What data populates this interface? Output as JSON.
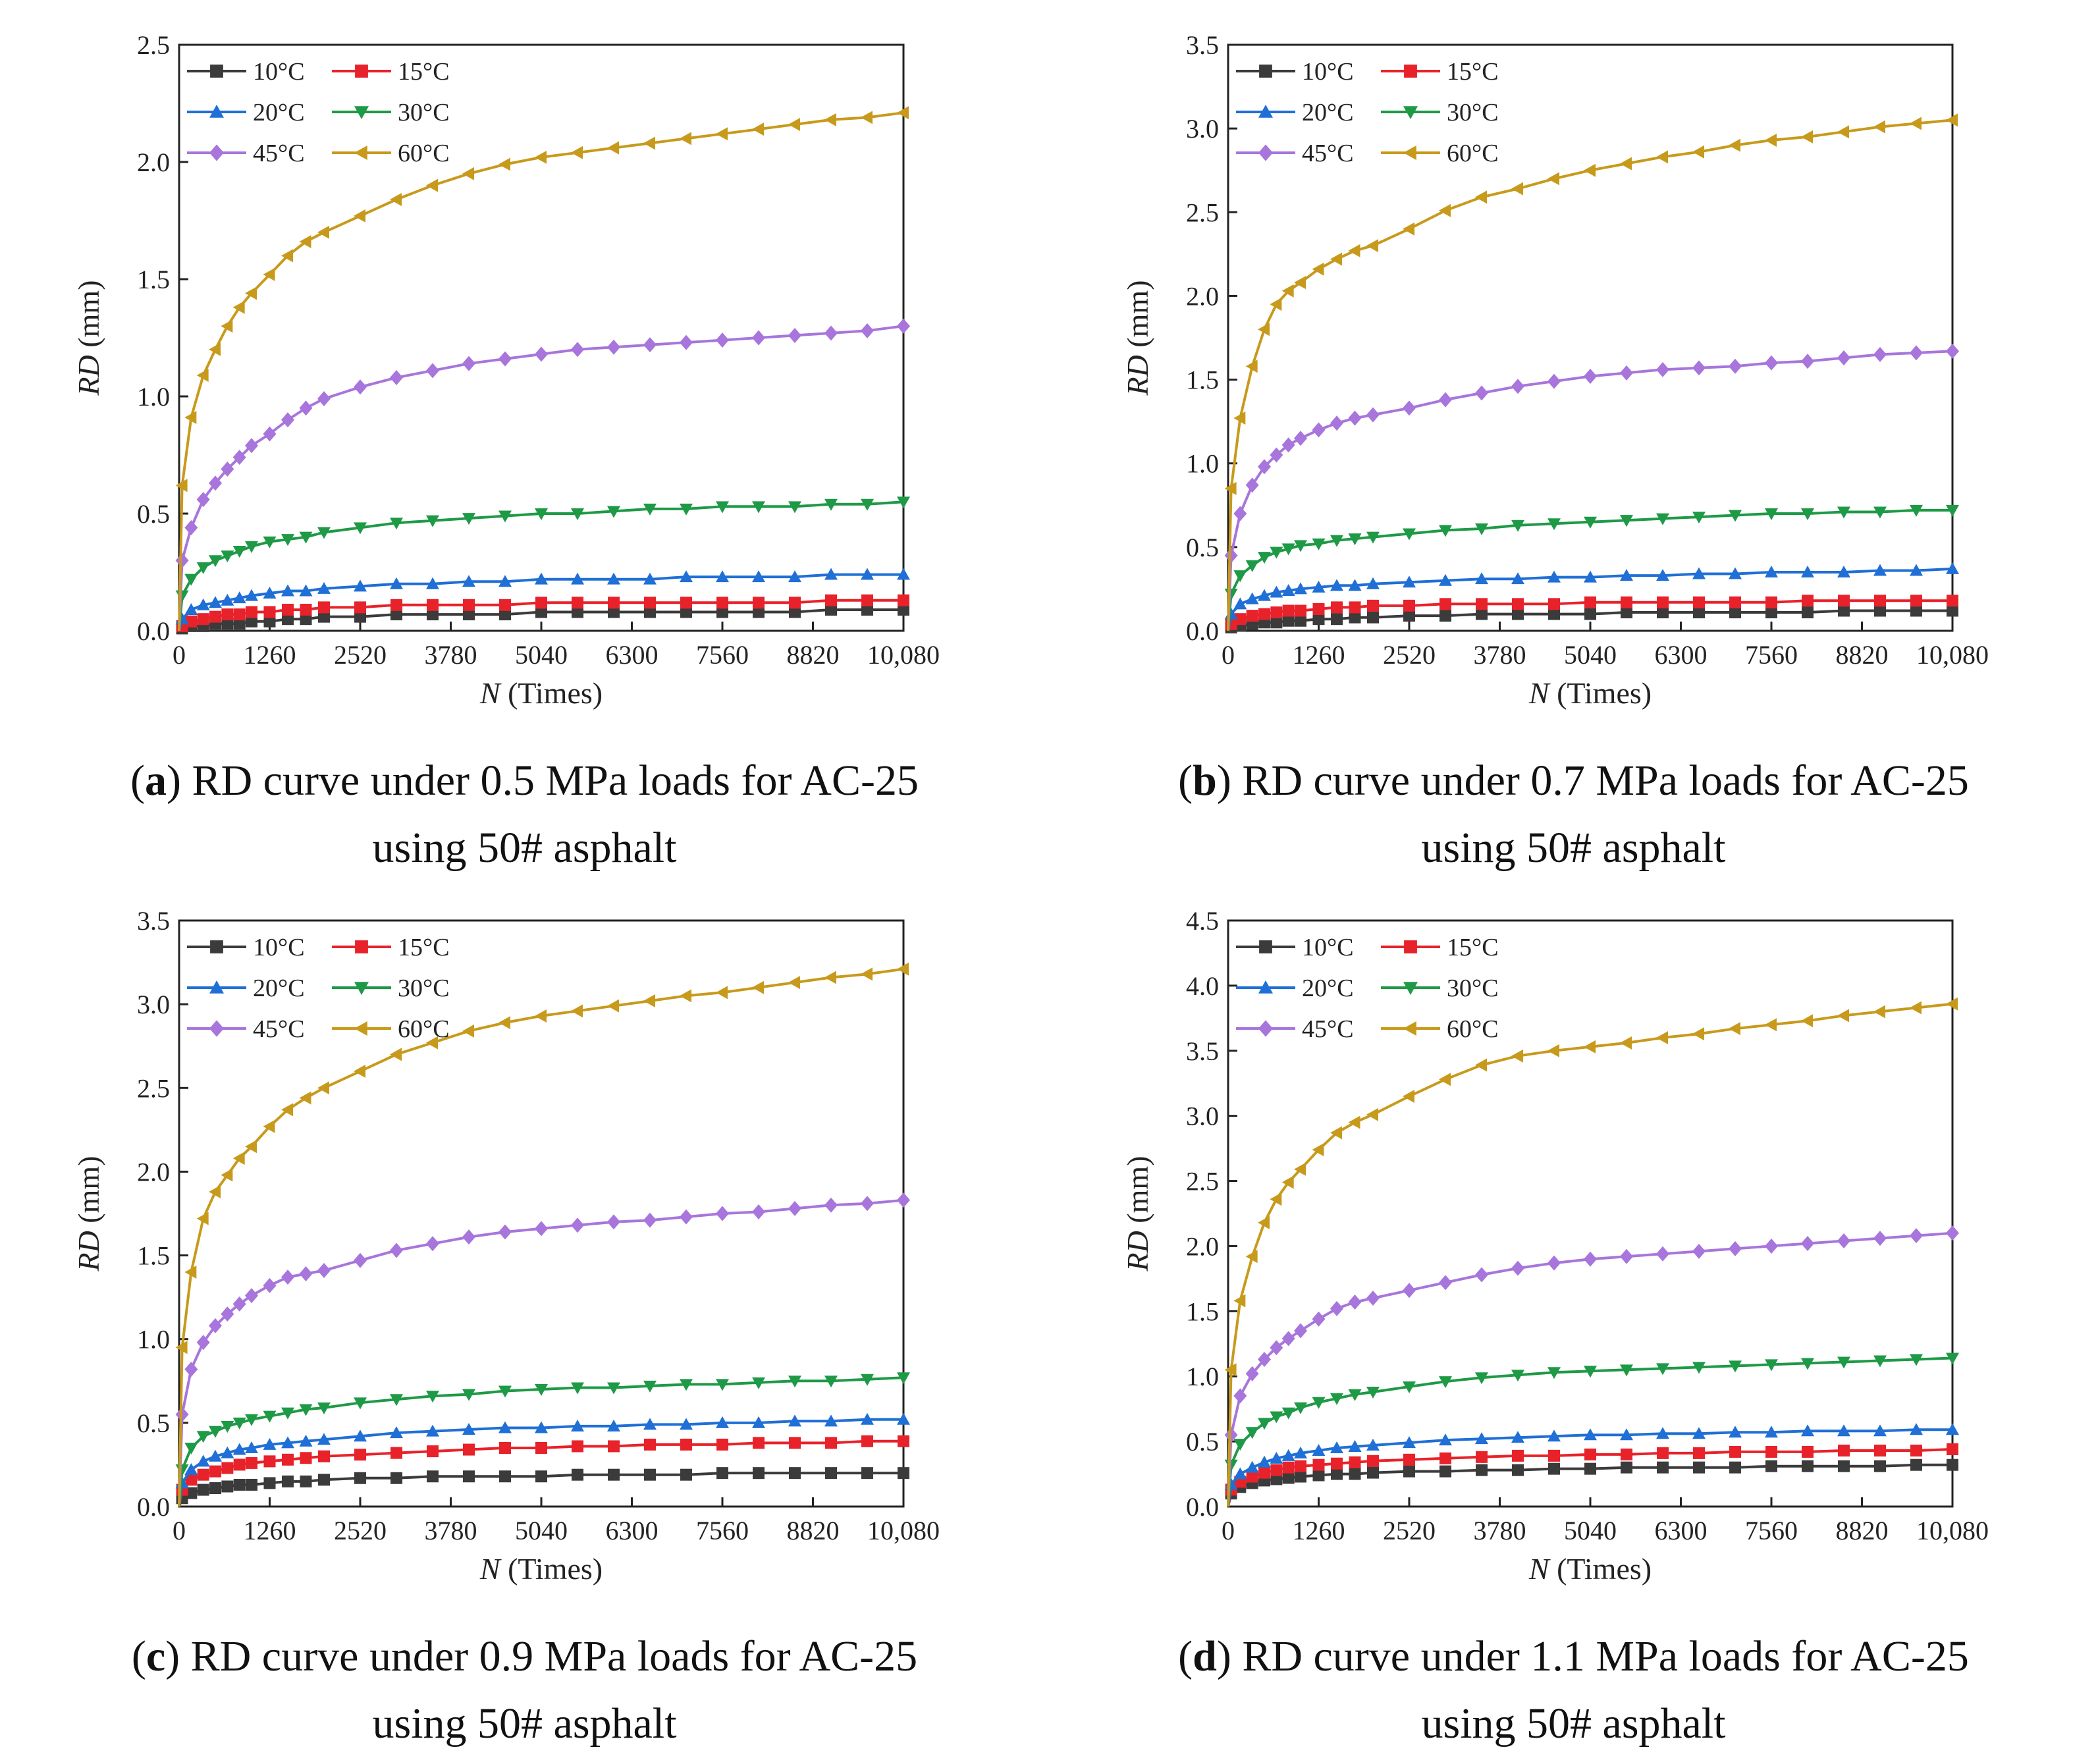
{
  "colors": {
    "10": "#3b3b3b",
    "15": "#e8222a",
    "20": "#1f6fd6",
    "30": "#1e9a46",
    "45": "#a875dc",
    "60": "#c89a1c"
  },
  "chart_data": [
    {
      "type": "line",
      "id": "a",
      "caption_letter": "a",
      "caption_line1": "RD curve under 0.5 MPa loads for AC-25",
      "caption_line2": "using 50# asphalt",
      "xlabel_italic": "N",
      "xlabel_rest": "(Times)",
      "ylabel_italic": "RD",
      "ylabel_rest": "(mm)",
      "xlim": [
        0,
        10080
      ],
      "ylim": [
        0,
        2.5
      ],
      "x_ticks": [
        "0",
        "1260",
        "2520",
        "3780",
        "5040",
        "6300",
        "7560",
        "8820",
        "10,080"
      ],
      "y_ticks": [
        "0.0",
        "0.5",
        "1.0",
        "1.5",
        "2.0",
        "2.5"
      ],
      "x": [
        0,
        42,
        168,
        336,
        504,
        672,
        840,
        1008,
        1260,
        1512,
        1764,
        2016,
        2520,
        3024,
        3528,
        4032,
        4536,
        5040,
        5544,
        6048,
        6552,
        7056,
        7560,
        8064,
        8568,
        9072,
        9576,
        10080
      ],
      "series": [
        {
          "name": "10°C",
          "marker": "square",
          "values": [
            0,
            0.01,
            0.02,
            0.02,
            0.03,
            0.03,
            0.03,
            0.04,
            0.04,
            0.05,
            0.05,
            0.06,
            0.06,
            0.07,
            0.07,
            0.07,
            0.07,
            0.08,
            0.08,
            0.08,
            0.08,
            0.08,
            0.08,
            0.08,
            0.08,
            0.09,
            0.09,
            0.09
          ]
        },
        {
          "name": "15°C",
          "marker": "square",
          "values": [
            0,
            0.02,
            0.04,
            0.05,
            0.06,
            0.07,
            0.07,
            0.08,
            0.08,
            0.09,
            0.09,
            0.1,
            0.1,
            0.11,
            0.11,
            0.11,
            0.11,
            0.12,
            0.12,
            0.12,
            0.12,
            0.12,
            0.12,
            0.12,
            0.12,
            0.13,
            0.13,
            0.13
          ]
        },
        {
          "name": "20°C",
          "marker": "triangle-up",
          "values": [
            0,
            0.05,
            0.09,
            0.11,
            0.12,
            0.13,
            0.14,
            0.15,
            0.16,
            0.17,
            0.17,
            0.18,
            0.19,
            0.2,
            0.2,
            0.21,
            0.21,
            0.22,
            0.22,
            0.22,
            0.22,
            0.23,
            0.23,
            0.23,
            0.23,
            0.24,
            0.24,
            0.24
          ]
        },
        {
          "name": "30°C",
          "marker": "triangle-down",
          "values": [
            0,
            0.15,
            0.22,
            0.27,
            0.3,
            0.32,
            0.34,
            0.36,
            0.38,
            0.39,
            0.4,
            0.42,
            0.44,
            0.46,
            0.47,
            0.48,
            0.49,
            0.5,
            0.5,
            0.51,
            0.52,
            0.52,
            0.53,
            0.53,
            0.53,
            0.54,
            0.54,
            0.55
          ]
        },
        {
          "name": "45°C",
          "marker": "diamond",
          "values": [
            0,
            0.3,
            0.44,
            0.56,
            0.63,
            0.69,
            0.74,
            0.79,
            0.84,
            0.9,
            0.95,
            0.99,
            1.04,
            1.08,
            1.11,
            1.14,
            1.16,
            1.18,
            1.2,
            1.21,
            1.22,
            1.23,
            1.24,
            1.25,
            1.26,
            1.27,
            1.28,
            1.3
          ]
        },
        {
          "name": "60°C",
          "marker": "triangle-left",
          "values": [
            0,
            0.62,
            0.91,
            1.09,
            1.2,
            1.3,
            1.38,
            1.44,
            1.52,
            1.6,
            1.66,
            1.7,
            1.77,
            1.84,
            1.9,
            1.95,
            1.99,
            2.02,
            2.04,
            2.06,
            2.08,
            2.1,
            2.12,
            2.14,
            2.16,
            2.18,
            2.19,
            2.21
          ]
        }
      ]
    },
    {
      "type": "line",
      "id": "b",
      "caption_letter": "b",
      "caption_line1": "RD curve under 0.7 MPa loads for AC-25",
      "caption_line2": "using 50# asphalt",
      "xlabel_italic": "N",
      "xlabel_rest": "(Times)",
      "ylabel_italic": "RD",
      "ylabel_rest": "(mm)",
      "xlim": [
        0,
        10080
      ],
      "ylim": [
        0,
        3.5
      ],
      "x_ticks": [
        "0",
        "1260",
        "2520",
        "3780",
        "5040",
        "6300",
        "7560",
        "8820",
        "10,080"
      ],
      "y_ticks": [
        "0.0",
        "0.5",
        "1.0",
        "1.5",
        "2.0",
        "2.5",
        "3.0",
        "3.5"
      ],
      "x": [
        0,
        42,
        168,
        336,
        504,
        672,
        840,
        1008,
        1260,
        1512,
        1764,
        2016,
        2520,
        3024,
        3528,
        4032,
        4536,
        5040,
        5544,
        6048,
        6552,
        7056,
        7560,
        8064,
        8568,
        9072,
        9576,
        10080
      ],
      "series": [
        {
          "name": "10°C",
          "marker": "square",
          "values": [
            0,
            0.02,
            0.03,
            0.04,
            0.05,
            0.05,
            0.06,
            0.06,
            0.07,
            0.07,
            0.08,
            0.08,
            0.09,
            0.09,
            0.1,
            0.1,
            0.1,
            0.1,
            0.11,
            0.11,
            0.11,
            0.11,
            0.11,
            0.11,
            0.12,
            0.12,
            0.12,
            0.12
          ]
        },
        {
          "name": "15°C",
          "marker": "square",
          "values": [
            0,
            0.04,
            0.07,
            0.09,
            0.1,
            0.11,
            0.12,
            0.12,
            0.13,
            0.14,
            0.14,
            0.15,
            0.15,
            0.16,
            0.16,
            0.16,
            0.16,
            0.17,
            0.17,
            0.17,
            0.17,
            0.17,
            0.17,
            0.18,
            0.18,
            0.18,
            0.18,
            0.18
          ]
        },
        {
          "name": "20°C",
          "marker": "triangle-up",
          "values": [
            0,
            0.1,
            0.16,
            0.19,
            0.21,
            0.23,
            0.24,
            0.25,
            0.26,
            0.27,
            0.27,
            0.28,
            0.29,
            0.3,
            0.31,
            0.31,
            0.32,
            0.32,
            0.33,
            0.33,
            0.34,
            0.34,
            0.35,
            0.35,
            0.35,
            0.36,
            0.36,
            0.37
          ]
        },
        {
          "name": "30°C",
          "marker": "triangle-down",
          "values": [
            0,
            0.22,
            0.33,
            0.39,
            0.44,
            0.47,
            0.49,
            0.51,
            0.52,
            0.54,
            0.55,
            0.56,
            0.58,
            0.6,
            0.61,
            0.63,
            0.64,
            0.65,
            0.66,
            0.67,
            0.68,
            0.69,
            0.7,
            0.7,
            0.71,
            0.71,
            0.72,
            0.72
          ]
        },
        {
          "name": "45°C",
          "marker": "diamond",
          "values": [
            0,
            0.45,
            0.7,
            0.87,
            0.98,
            1.05,
            1.11,
            1.15,
            1.2,
            1.24,
            1.27,
            1.29,
            1.33,
            1.38,
            1.42,
            1.46,
            1.49,
            1.52,
            1.54,
            1.56,
            1.57,
            1.58,
            1.6,
            1.61,
            1.63,
            1.65,
            1.66,
            1.67
          ]
        },
        {
          "name": "60°C",
          "marker": "triangle-left",
          "values": [
            0,
            0.85,
            1.27,
            1.58,
            1.8,
            1.95,
            2.03,
            2.08,
            2.16,
            2.22,
            2.27,
            2.3,
            2.4,
            2.51,
            2.59,
            2.64,
            2.7,
            2.75,
            2.79,
            2.83,
            2.86,
            2.9,
            2.93,
            2.95,
            2.98,
            3.01,
            3.03,
            3.05
          ]
        }
      ]
    },
    {
      "type": "line",
      "id": "c",
      "caption_letter": "c",
      "caption_line1": "RD curve under 0.9 MPa loads for AC-25",
      "caption_line2": "using 50# asphalt",
      "xlabel_italic": "N",
      "xlabel_rest": "(Times)",
      "ylabel_italic": "RD",
      "ylabel_rest": "(mm)",
      "xlim": [
        0,
        10080
      ],
      "ylim": [
        0,
        3.5
      ],
      "x_ticks": [
        "0",
        "1260",
        "2520",
        "3780",
        "5040",
        "6300",
        "7560",
        "8820",
        "10,080"
      ],
      "y_ticks": [
        "0.0",
        "0.5",
        "1.0",
        "1.5",
        "2.0",
        "2.5",
        "3.0",
        "3.5"
      ],
      "x": [
        0,
        42,
        168,
        336,
        504,
        672,
        840,
        1008,
        1260,
        1512,
        1764,
        2016,
        2520,
        3024,
        3528,
        4032,
        4536,
        5040,
        5544,
        6048,
        6552,
        7056,
        7560,
        8064,
        8568,
        9072,
        9576,
        10080
      ],
      "series": [
        {
          "name": "10°C",
          "marker": "square",
          "values": [
            0,
            0.05,
            0.08,
            0.1,
            0.11,
            0.12,
            0.13,
            0.13,
            0.14,
            0.15,
            0.15,
            0.16,
            0.17,
            0.17,
            0.18,
            0.18,
            0.18,
            0.18,
            0.19,
            0.19,
            0.19,
            0.19,
            0.2,
            0.2,
            0.2,
            0.2,
            0.2,
            0.2
          ]
        },
        {
          "name": "15°C",
          "marker": "square",
          "values": [
            0,
            0.1,
            0.16,
            0.19,
            0.21,
            0.23,
            0.25,
            0.26,
            0.27,
            0.28,
            0.29,
            0.3,
            0.31,
            0.32,
            0.33,
            0.34,
            0.35,
            0.35,
            0.36,
            0.36,
            0.37,
            0.37,
            0.37,
            0.38,
            0.38,
            0.38,
            0.39,
            0.39
          ]
        },
        {
          "name": "20°C",
          "marker": "triangle-up",
          "values": [
            0,
            0.14,
            0.22,
            0.27,
            0.3,
            0.32,
            0.34,
            0.35,
            0.37,
            0.38,
            0.39,
            0.4,
            0.42,
            0.44,
            0.45,
            0.46,
            0.47,
            0.47,
            0.48,
            0.48,
            0.49,
            0.49,
            0.5,
            0.5,
            0.51,
            0.51,
            0.52,
            0.52
          ]
        },
        {
          "name": "30°C",
          "marker": "triangle-down",
          "values": [
            0,
            0.22,
            0.35,
            0.42,
            0.45,
            0.48,
            0.5,
            0.52,
            0.54,
            0.56,
            0.58,
            0.59,
            0.62,
            0.64,
            0.66,
            0.67,
            0.69,
            0.7,
            0.71,
            0.71,
            0.72,
            0.73,
            0.73,
            0.74,
            0.75,
            0.75,
            0.76,
            0.77
          ]
        },
        {
          "name": "45°C",
          "marker": "diamond",
          "values": [
            0,
            0.55,
            0.82,
            0.98,
            1.08,
            1.15,
            1.21,
            1.26,
            1.32,
            1.37,
            1.39,
            1.41,
            1.47,
            1.53,
            1.57,
            1.61,
            1.64,
            1.66,
            1.68,
            1.7,
            1.71,
            1.73,
            1.75,
            1.76,
            1.78,
            1.8,
            1.81,
            1.83
          ]
        },
        {
          "name": "60°C",
          "marker": "triangle-left",
          "values": [
            0,
            0.95,
            1.4,
            1.72,
            1.88,
            1.98,
            2.08,
            2.15,
            2.27,
            2.37,
            2.44,
            2.5,
            2.6,
            2.7,
            2.77,
            2.84,
            2.89,
            2.93,
            2.96,
            2.99,
            3.02,
            3.05,
            3.07,
            3.1,
            3.13,
            3.16,
            3.18,
            3.21
          ]
        }
      ]
    },
    {
      "type": "line",
      "id": "d",
      "caption_letter": "d",
      "caption_line1": "RD curve under 1.1 MPa loads for AC-25",
      "caption_line2": "using 50# asphalt",
      "xlabel_italic": "N",
      "xlabel_rest": "(Times)",
      "ylabel_italic": "RD",
      "ylabel_rest": "(mm)",
      "xlim": [
        0,
        10080
      ],
      "ylim": [
        0,
        4.5
      ],
      "x_ticks": [
        "0",
        "1260",
        "2520",
        "3780",
        "5040",
        "6300",
        "7560",
        "8820",
        "10,080"
      ],
      "y_ticks": [
        "0.0",
        "0.5",
        "1.0",
        "1.5",
        "2.0",
        "2.5",
        "3.0",
        "3.5",
        "4.0",
        "4.5"
      ],
      "x": [
        0,
        42,
        168,
        336,
        504,
        672,
        840,
        1008,
        1260,
        1512,
        1764,
        2016,
        2520,
        3024,
        3528,
        4032,
        4536,
        5040,
        5544,
        6048,
        6552,
        7056,
        7560,
        8064,
        8568,
        9072,
        9576,
        10080
      ],
      "series": [
        {
          "name": "10°C",
          "marker": "square",
          "values": [
            0,
            0.1,
            0.15,
            0.18,
            0.2,
            0.21,
            0.22,
            0.23,
            0.24,
            0.25,
            0.25,
            0.26,
            0.27,
            0.27,
            0.28,
            0.28,
            0.29,
            0.29,
            0.3,
            0.3,
            0.3,
            0.3,
            0.31,
            0.31,
            0.31,
            0.31,
            0.32,
            0.32
          ]
        },
        {
          "name": "15°C",
          "marker": "square",
          "values": [
            0,
            0.13,
            0.19,
            0.23,
            0.26,
            0.28,
            0.3,
            0.31,
            0.32,
            0.33,
            0.34,
            0.35,
            0.36,
            0.37,
            0.38,
            0.39,
            0.39,
            0.4,
            0.4,
            0.41,
            0.41,
            0.42,
            0.42,
            0.42,
            0.43,
            0.43,
            0.43,
            0.44
          ]
        },
        {
          "name": "20°C",
          "marker": "triangle-up",
          "values": [
            0,
            0.17,
            0.25,
            0.3,
            0.34,
            0.37,
            0.39,
            0.41,
            0.43,
            0.45,
            0.46,
            0.47,
            0.49,
            0.51,
            0.52,
            0.53,
            0.54,
            0.55,
            0.55,
            0.56,
            0.56,
            0.57,
            0.57,
            0.58,
            0.58,
            0.58,
            0.59,
            0.59
          ]
        },
        {
          "name": "30°C",
          "marker": "triangle-down",
          "values": [
            0,
            0.32,
            0.48,
            0.57,
            0.64,
            0.69,
            0.72,
            0.76,
            0.8,
            0.83,
            0.86,
            0.88,
            0.92,
            0.96,
            0.99,
            1.01,
            1.03,
            1.04,
            1.05,
            1.06,
            1.07,
            1.08,
            1.09,
            1.1,
            1.11,
            1.12,
            1.13,
            1.14
          ]
        },
        {
          "name": "45°C",
          "marker": "diamond",
          "values": [
            0,
            0.55,
            0.85,
            1.02,
            1.13,
            1.22,
            1.29,
            1.35,
            1.44,
            1.52,
            1.57,
            1.6,
            1.66,
            1.72,
            1.78,
            1.83,
            1.87,
            1.9,
            1.92,
            1.94,
            1.96,
            1.98,
            2.0,
            2.02,
            2.04,
            2.06,
            2.08,
            2.1
          ]
        },
        {
          "name": "60°C",
          "marker": "triangle-left",
          "values": [
            0,
            1.05,
            1.58,
            1.92,
            2.18,
            2.36,
            2.49,
            2.59,
            2.74,
            2.87,
            2.95,
            3.01,
            3.15,
            3.28,
            3.39,
            3.46,
            3.5,
            3.53,
            3.56,
            3.6,
            3.63,
            3.67,
            3.7,
            3.73,
            3.77,
            3.8,
            3.83,
            3.86
          ]
        }
      ]
    }
  ]
}
